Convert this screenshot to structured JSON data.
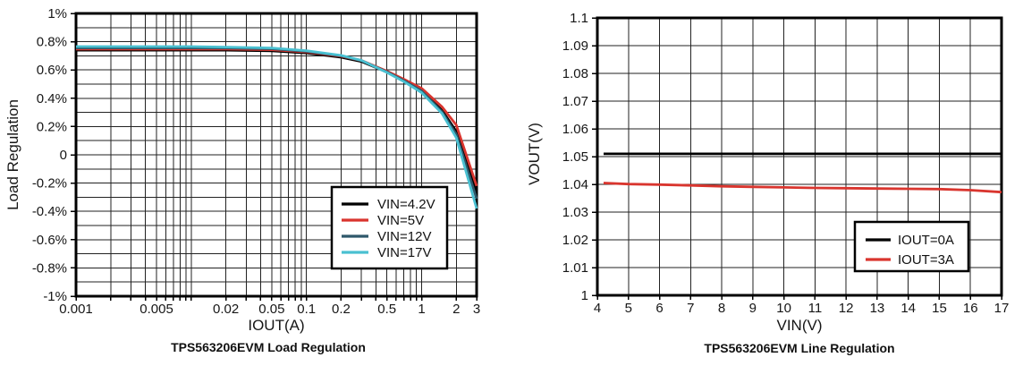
{
  "page": {
    "background": "#ffffff"
  },
  "colors": {
    "black": "#000000",
    "red": "#d9352e",
    "dark_teal": "#2e586a",
    "cyan": "#4ac0d1",
    "grid": "#222222"
  },
  "chart_data": [
    {
      "type": "line",
      "title": "TPS563206EVM Load Regulation",
      "xlabel": "IOUT(A)",
      "ylabel": "Load Regulation",
      "x_scale": "log",
      "xlim": [
        0.001,
        3
      ],
      "ylim": [
        -1,
        1
      ],
      "y_unit": "%",
      "grid": true,
      "y_grid_step": 0.1,
      "legend_position": "inside-bottom-right",
      "x_ticks": [
        {
          "v": 0.001,
          "label": "0.001"
        },
        {
          "v": 0.005,
          "label": "0.005"
        },
        {
          "v": 0.02,
          "label": "0.02"
        },
        {
          "v": 0.05,
          "label": "0.05"
        },
        {
          "v": 0.1,
          "label": "0.1"
        },
        {
          "v": 0.2,
          "label": "0.2"
        },
        {
          "v": 0.5,
          "label": "0.5"
        },
        {
          "v": 1,
          "label": "1"
        },
        {
          "v": 2,
          "label": "2"
        },
        {
          "v": 3,
          "label": "3"
        }
      ],
      "y_ticks": [
        {
          "v": 1,
          "label": "1%"
        },
        {
          "v": 0.8,
          "label": "0.8%"
        },
        {
          "v": 0.6,
          "label": "0.6%"
        },
        {
          "v": 0.4,
          "label": "0.4%"
        },
        {
          "v": 0.2,
          "label": "0.2%"
        },
        {
          "v": 0,
          "label": "0"
        },
        {
          "v": -0.2,
          "label": "-0.2%"
        },
        {
          "v": -0.4,
          "label": "-0.4%"
        },
        {
          "v": -0.6,
          "label": "-0.6%"
        },
        {
          "v": -0.8,
          "label": "-0.8%"
        },
        {
          "v": -1,
          "label": "-1%"
        }
      ],
      "series": [
        {
          "name": "VIN=4.2V",
          "color": "#000000",
          "x": [
            0.001,
            0.002,
            0.005,
            0.01,
            0.02,
            0.05,
            0.1,
            0.2,
            0.3,
            0.5,
            0.7,
            1,
            1.5,
            2,
            3
          ],
          "y": [
            0.74,
            0.74,
            0.74,
            0.74,
            0.74,
            0.735,
            0.72,
            0.69,
            0.66,
            0.585,
            0.525,
            0.455,
            0.315,
            0.165,
            -0.26
          ]
        },
        {
          "name": "VIN=5V",
          "color": "#d9352e",
          "x": [
            0.001,
            0.002,
            0.005,
            0.01,
            0.02,
            0.05,
            0.1,
            0.2,
            0.3,
            0.5,
            0.7,
            1,
            1.5,
            2,
            3
          ],
          "y": [
            0.748,
            0.748,
            0.748,
            0.748,
            0.748,
            0.743,
            0.727,
            0.697,
            0.667,
            0.592,
            0.535,
            0.47,
            0.34,
            0.21,
            -0.22
          ]
        },
        {
          "name": "VIN=12V",
          "color": "#2e586a",
          "x": [
            0.001,
            0.002,
            0.005,
            0.01,
            0.02,
            0.05,
            0.1,
            0.2,
            0.3,
            0.5,
            0.7,
            1,
            1.5,
            2,
            3
          ],
          "y": [
            0.756,
            0.756,
            0.756,
            0.756,
            0.755,
            0.75,
            0.732,
            0.7,
            0.667,
            0.586,
            0.525,
            0.452,
            0.305,
            0.145,
            -0.31
          ]
        },
        {
          "name": "VIN=17V",
          "color": "#4ac0d1",
          "x": [
            0.001,
            0.002,
            0.005,
            0.01,
            0.02,
            0.05,
            0.1,
            0.2,
            0.3,
            0.5,
            0.7,
            1,
            1.5,
            2,
            3
          ],
          "y": [
            0.766,
            0.766,
            0.766,
            0.766,
            0.762,
            0.756,
            0.737,
            0.703,
            0.668,
            0.582,
            0.518,
            0.44,
            0.293,
            0.12,
            -0.38
          ]
        }
      ]
    },
    {
      "type": "line",
      "title": "TPS563206EVM Line Regulation",
      "xlabel": "VIN(V)",
      "ylabel": "VOUT(V)",
      "x_scale": "linear",
      "xlim": [
        4,
        17
      ],
      "ylim": [
        1,
        1.1
      ],
      "grid": true,
      "x_grid_step": 1,
      "y_grid_step": 0.01,
      "legend_position": "inside-bottom-right",
      "x_ticks": [
        {
          "v": 4,
          "label": "4"
        },
        {
          "v": 5,
          "label": "5"
        },
        {
          "v": 6,
          "label": "6"
        },
        {
          "v": 7,
          "label": "7"
        },
        {
          "v": 8,
          "label": "8"
        },
        {
          "v": 9,
          "label": "9"
        },
        {
          "v": 10,
          "label": "10"
        },
        {
          "v": 11,
          "label": "11"
        },
        {
          "v": 12,
          "label": "12"
        },
        {
          "v": 13,
          "label": "13"
        },
        {
          "v": 14,
          "label": "14"
        },
        {
          "v": 15,
          "label": "15"
        },
        {
          "v": 16,
          "label": "16"
        },
        {
          "v": 17,
          "label": "17"
        }
      ],
      "y_ticks": [
        {
          "v": 1.1,
          "label": "1.1"
        },
        {
          "v": 1.09,
          "label": "1.09"
        },
        {
          "v": 1.08,
          "label": "1.08"
        },
        {
          "v": 1.07,
          "label": "1.07"
        },
        {
          "v": 1.06,
          "label": "1.06"
        },
        {
          "v": 1.05,
          "label": "1.05"
        },
        {
          "v": 1.04,
          "label": "1.04"
        },
        {
          "v": 1.03,
          "label": "1.03"
        },
        {
          "v": 1.02,
          "label": "1.02"
        },
        {
          "v": 1.01,
          "label": "1.01"
        },
        {
          "v": 1,
          "label": "1"
        }
      ],
      "series": [
        {
          "name": "IOUT=0A",
          "color": "#000000",
          "x": [
            4.2,
            17
          ],
          "y": [
            1.051,
            1.051
          ]
        },
        {
          "name": "IOUT=3A",
          "color": "#d9352e",
          "x": [
            4.2,
            5,
            6,
            7,
            8,
            9,
            10,
            11,
            12,
            13,
            14,
            15,
            16,
            17
          ],
          "y": [
            1.0405,
            1.0401,
            1.0399,
            1.0396,
            1.0393,
            1.0391,
            1.0389,
            1.0387,
            1.0386,
            1.0385,
            1.0384,
            1.0383,
            1.0379,
            1.0372
          ]
        }
      ]
    }
  ]
}
